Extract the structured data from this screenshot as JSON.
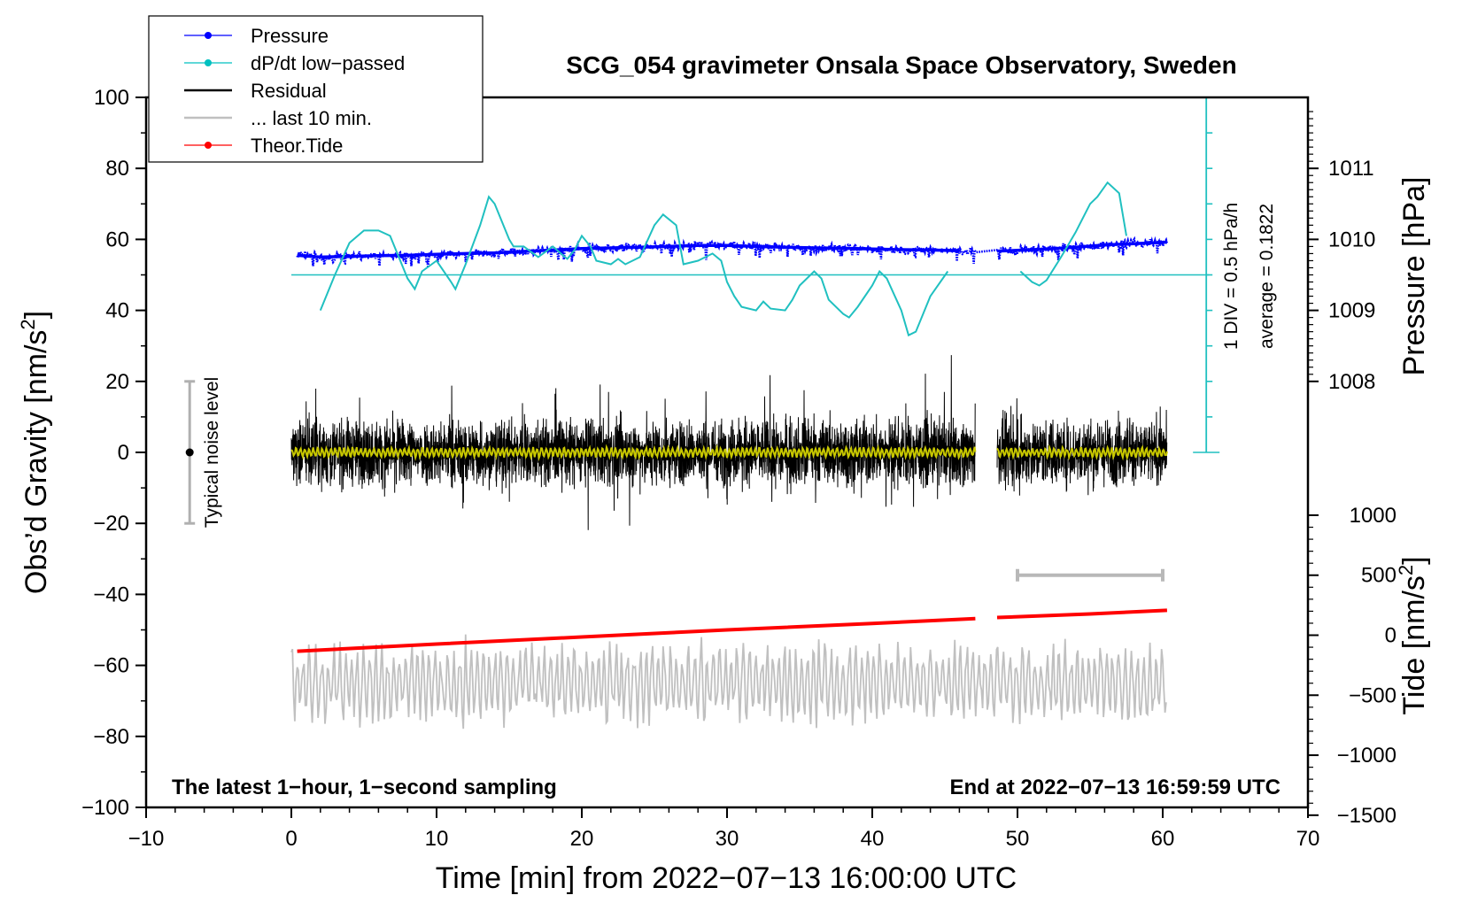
{
  "chart_data": {
    "type": "line",
    "title": "SCG_054 gravimeter Onsala Space Observatory, Sweden",
    "xlabel": "Time [min] from 2022−07−13 16:00:00 UTC",
    "ylabel_left": "Obs’d Gravity [nm/s",
    "ylabel_left_sup": "2",
    "ylabel_left_end": "]",
    "ylabel_right_pressure": "Pressure [hPa]",
    "ylabel_right_tide": "Tide [nm/s",
    "ylabel_right_tide_sup": "2",
    "ylabel_right_tide_end": "]",
    "xlim": [
      -10,
      70
    ],
    "ylim": [
      -100,
      100
    ],
    "x_ticks": [
      -10,
      0,
      10,
      20,
      30,
      40,
      50,
      60,
      70
    ],
    "x_tick_labels": [
      "−10",
      "0",
      "10",
      "20",
      "30",
      "40",
      "50",
      "60",
      "70"
    ],
    "y_ticks": [
      -100,
      -80,
      -60,
      -40,
      -20,
      0,
      20,
      40,
      60,
      80,
      100
    ],
    "y_tick_labels": [
      "−100",
      "−80",
      "−60",
      "−40",
      "−20",
      "0",
      "20",
      "40",
      "60",
      "80",
      "100"
    ],
    "pressure_axis": {
      "ticks": [
        1008,
        1009,
        1010,
        1011
      ],
      "tick_labels": [
        "1008",
        "1009",
        "1010",
        "1011"
      ],
      "gravity_at_1008": 20,
      "gravity_per_hpa": 20
    },
    "tide_axis": {
      "ticks": [
        -1500,
        -1000,
        -500,
        0,
        500,
        1000
      ],
      "tick_labels": [
        "−1500",
        "−1000",
        "−500",
        "0",
        "500",
        "1000"
      ],
      "gravity_at_zero": -51.5,
      "gravity_per_500": 16.9
    },
    "legend": [
      {
        "label": "Pressure",
        "color": "#0000ff",
        "marker": true
      },
      {
        "label": "dP/dt low−passed",
        "color": "#00c0c0",
        "marker": true
      },
      {
        "label": "Residual",
        "color": "#000000",
        "marker": false
      },
      {
        "label": "... last 10 min.",
        "color": "#c0c0c0",
        "marker": false
      },
      {
        "label": "Theor.Tide",
        "color": "#ff0000",
        "marker": true
      }
    ],
    "series": [
      {
        "name": "Pressure (gravity-axis units)",
        "color": "#0000ff",
        "x": [
          0.4,
          2,
          4,
          6,
          8,
          10,
          12,
          14,
          16,
          18,
          20,
          22,
          24,
          26,
          28,
          30,
          32,
          34,
          36,
          38,
          40,
          42,
          44,
          46,
          47.2,
          48.6,
          50,
          52,
          54,
          56,
          58,
          60.3
        ],
        "y": [
          55.5,
          55.0,
          55.2,
          55.4,
          55.5,
          55.8,
          56.0,
          56.2,
          56.6,
          57.0,
          57.4,
          57.6,
          57.8,
          58.0,
          58.3,
          58.3,
          58.0,
          57.8,
          57.6,
          57.5,
          57.3,
          57.1,
          57.0,
          56.8,
          56.5,
          56.7,
          56.9,
          57.3,
          57.8,
          58.4,
          58.8,
          59.2
        ]
      },
      {
        "name": "dP/dt low-passed (gravity-axis units)",
        "color": "#20c0c0",
        "x": [
          2,
          3,
          4,
          5,
          6,
          6.8,
          7.3,
          8,
          8.5,
          9,
          10,
          11,
          11.3,
          12,
          13,
          13.6,
          14,
          15,
          15.3,
          16,
          17,
          18,
          19,
          19.5,
          20,
          20.6,
          21,
          22,
          22.5,
          23,
          24,
          25,
          25.6,
          26.5,
          27,
          28,
          29,
          29.6,
          30,
          30.5,
          31,
          32,
          32.5,
          33,
          34,
          34.5,
          35,
          36,
          36.5,
          37,
          38,
          38.4,
          39,
          40,
          40.5,
          41,
          42,
          42.5,
          43,
          44,
          45.2,
          50.2,
          51,
          51.5,
          52,
          53,
          54,
          55,
          55.5,
          56.2,
          57,
          57.5
        ],
        "y": [
          40,
          50,
          59,
          62.5,
          62.5,
          61,
          56,
          49,
          46,
          51,
          54,
          48,
          46,
          53,
          64,
          72,
          70,
          60,
          58,
          58,
          55,
          58,
          54.5,
          57,
          61,
          58,
          54,
          53,
          54.5,
          53,
          55,
          64,
          67,
          64,
          53,
          54,
          56,
          54,
          48,
          44,
          41,
          40,
          42.5,
          40.5,
          40,
          43,
          47,
          51,
          49,
          43,
          39,
          38,
          41,
          47,
          51,
          49,
          40,
          33,
          34,
          44,
          51,
          51,
          48,
          47,
          48.5,
          55,
          62,
          70,
          72,
          76,
          73,
          61
        ]
      },
      {
        "name": "Residual",
        "color": "#000000",
        "x_range": [
          0,
          60.3
        ],
        "gap": [
          47.1,
          48.6
        ],
        "typical_amplitude": 8
      },
      {
        "name": "Residual low-passed",
        "color": "#c8c800",
        "x_range": [
          0,
          60.3
        ],
        "gap": [
          47.1,
          48.6
        ],
        "typical_amplitude": 1.2
      },
      {
        "name": "... last 10 min.",
        "color": "#c0c0c0",
        "x_range": [
          0,
          60.3
        ],
        "center": -65,
        "typical_amplitude": 8
      },
      {
        "name": "Theor.Tide (gravity-axis units)",
        "color": "#ff0000",
        "x": [
          0.4,
          10,
          20,
          30,
          40,
          47.1,
          48.6,
          55,
          60.3
        ],
        "y": [
          -56,
          -54,
          -52,
          -50,
          -48.2,
          -46.8,
          -46.5,
          -45.5,
          -44.5
        ]
      }
    ],
    "noise_level": {
      "label": "Typical noise level",
      "x": -7,
      "center": 0,
      "range": [
        -20,
        20
      ]
    },
    "range_bar_last10": {
      "x": [
        50,
        60
      ],
      "tide_value": 500
    },
    "pressure_baseline": {
      "y": 50,
      "color": "#20c0c0"
    },
    "dpdt_scale_note": "1 DIV = 0.5 hPa/h",
    "average_note": "average = 0.1822",
    "footer_left": "The latest 1−hour, 1−second sampling",
    "footer_right": "End at 2022−07−13 16:59:59 UTC"
  }
}
